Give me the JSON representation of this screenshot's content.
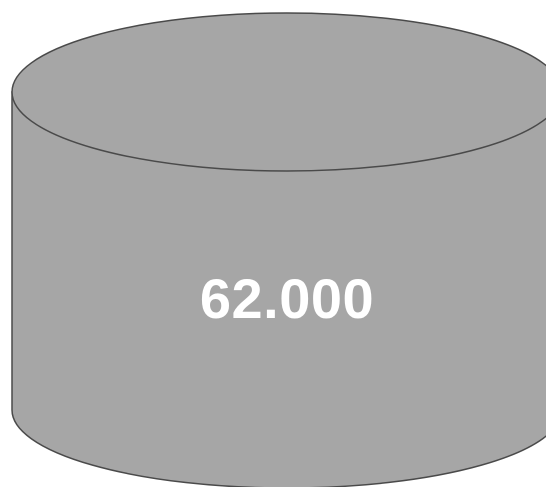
{
  "cylinder": {
    "value_label": "62.000",
    "fill_color": "#a6a6a6",
    "stroke_color": "#4a4a4a",
    "text_color": "#ffffff"
  }
}
